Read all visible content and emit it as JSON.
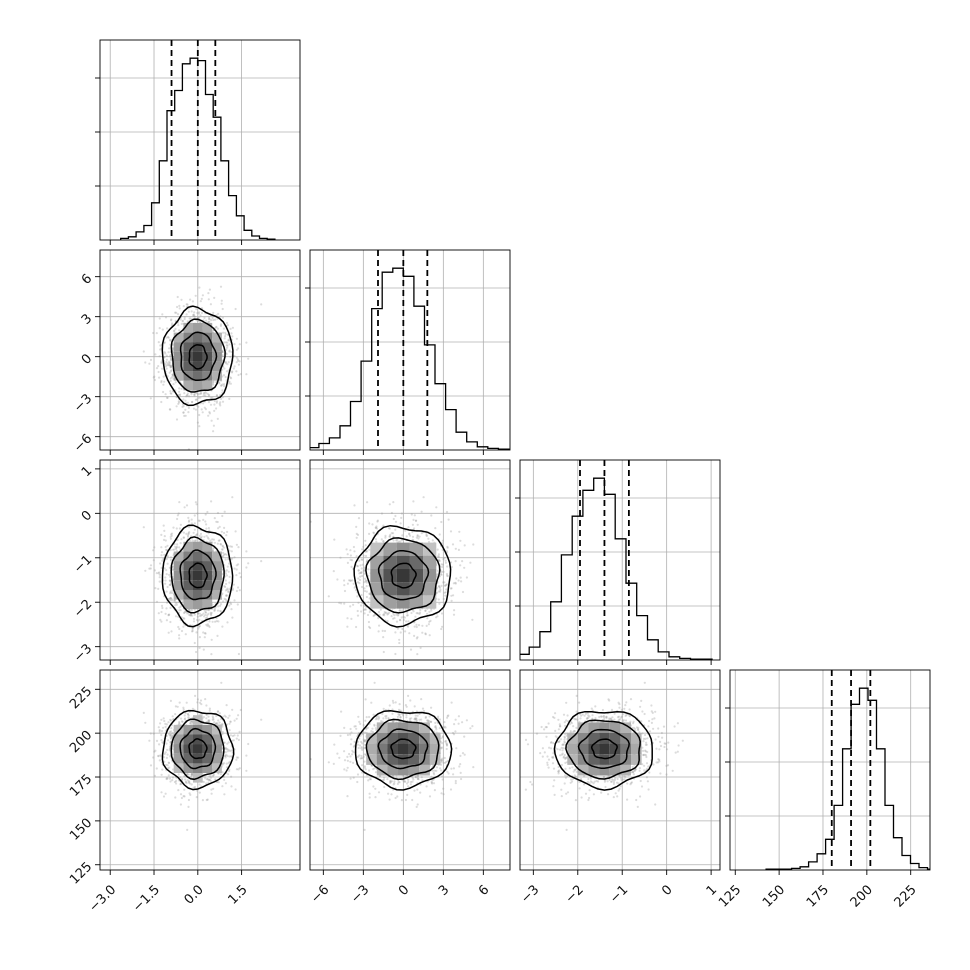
{
  "chart_data": {
    "type": "corner",
    "title": "",
    "grid": true,
    "parameters": [
      {
        "label": "",
        "mean": 0.0,
        "std": 0.6,
        "quantiles": [
          -0.9,
          0.0,
          0.6
        ],
        "range": [
          -3.35,
          3.5
        ],
        "ticks": [
          -3.0,
          -1.5,
          0.0,
          1.5
        ],
        "tick_labels": [
          "−3.0",
          "−1.5",
          "0.0",
          "1.5"
        ]
      },
      {
        "label": "",
        "mean": 0.0,
        "std": 1.8,
        "quantiles": [
          -1.9,
          0.0,
          1.8
        ],
        "range": [
          -7.0,
          8.0
        ],
        "ticks": [
          -6,
          -3,
          0,
          3,
          6
        ],
        "tick_labels": [
          "−6",
          "−3",
          "0",
          "3",
          "6"
        ]
      },
      {
        "label": "",
        "mean": -1.4,
        "std": 0.55,
        "quantiles": [
          -1.95,
          -1.4,
          -0.85
        ],
        "range": [
          -3.3,
          1.2
        ],
        "ticks": [
          -3,
          -2,
          -1,
          0,
          1
        ],
        "tick_labels": [
          "−3",
          "−2",
          "−1",
          "0",
          "1"
        ]
      },
      {
        "label": "",
        "mean": 191.0,
        "std": 11.0,
        "quantiles": [
          180.0,
          191.0,
          202.0
        ],
        "range": [
          122.0,
          236.0
        ],
        "ticks": [
          125,
          150,
          175,
          200,
          225
        ],
        "tick_labels": [
          "125",
          "150",
          "175",
          "200",
          "225"
        ]
      }
    ],
    "histograms": [
      {
        "bins": 20,
        "counts": [
          2,
          4,
          10,
          18,
          46,
          98,
          160,
          185,
          218,
          225,
          222,
          180,
          152,
          98,
          55,
          30,
          12,
          5,
          2,
          1
        ]
      },
      {
        "bins": 20,
        "counts": [
          1,
          3,
          8,
          15,
          30,
          60,
          110,
          175,
          220,
          225,
          215,
          178,
          130,
          82,
          50,
          22,
          10,
          4,
          2,
          1
        ]
      },
      {
        "bins": 20,
        "counts": [
          1,
          3,
          7,
          16,
          35,
          72,
          130,
          178,
          210,
          225,
          205,
          150,
          95,
          55,
          25,
          10,
          4,
          2,
          1,
          1
        ]
      },
      {
        "bins": 20,
        "counts": [
          1,
          1,
          1,
          2,
          4,
          10,
          20,
          38,
          80,
          150,
          205,
          225,
          210,
          150,
          80,
          40,
          18,
          8,
          3,
          1
        ]
      }
    ],
    "contour_levels_sigma": [
      0.5,
      1.0,
      1.5,
      2.0
    ],
    "n_samples_shown": 1400
  }
}
